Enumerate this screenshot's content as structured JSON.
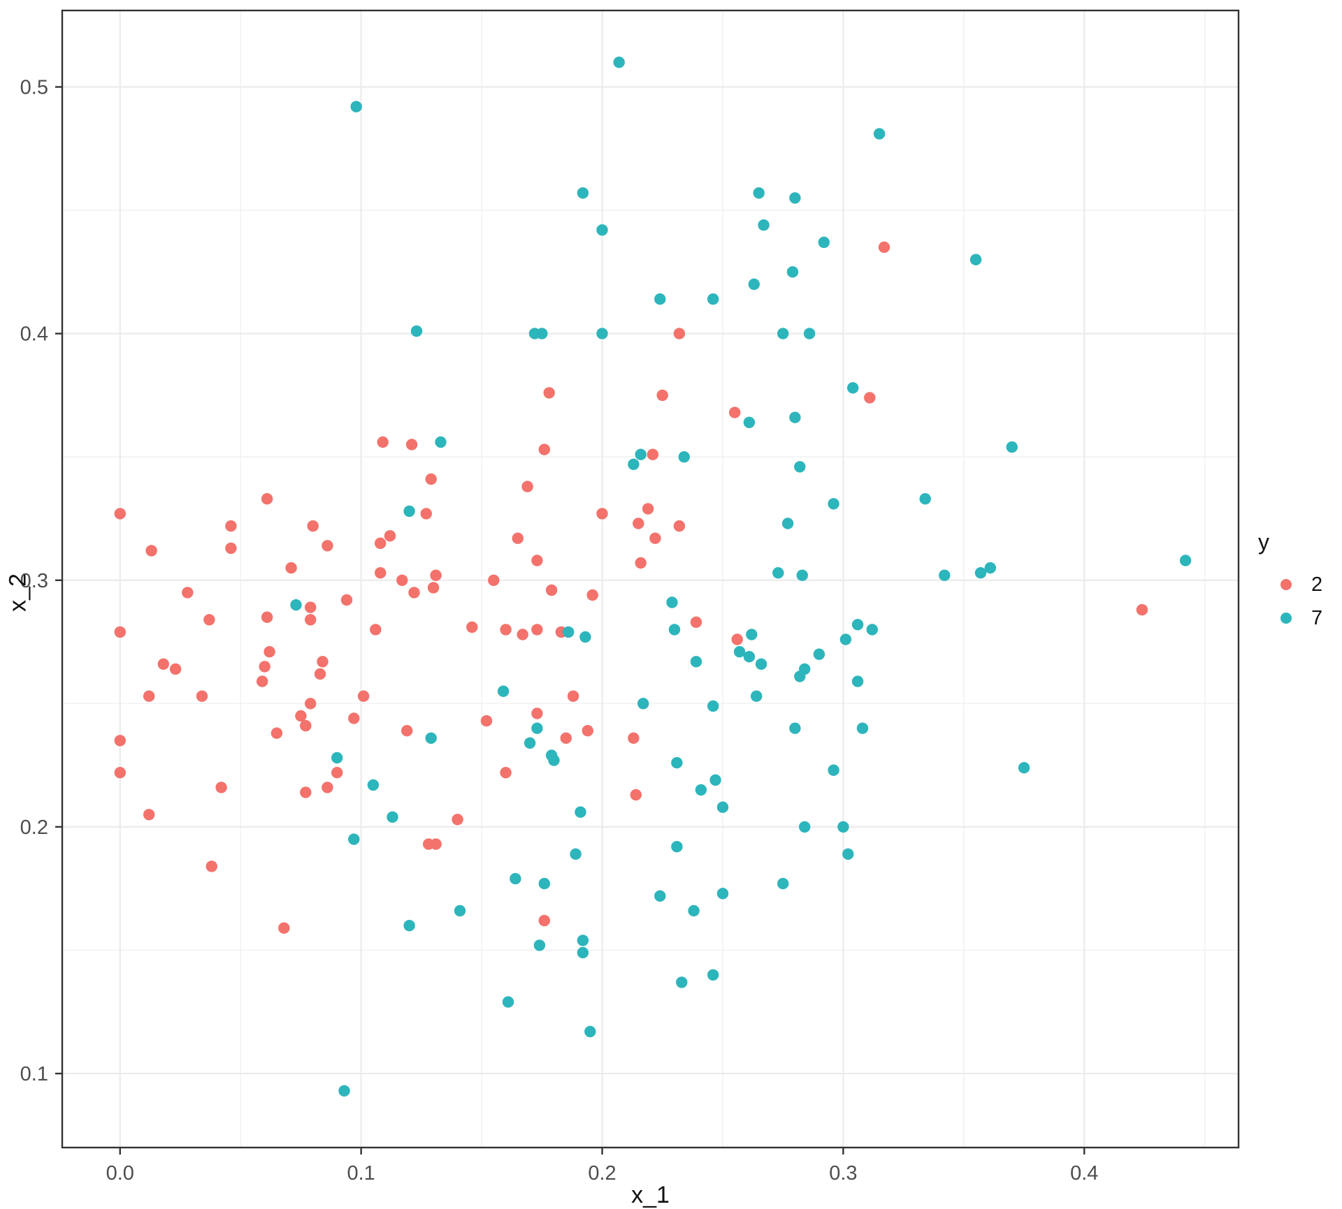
{
  "chart_data": {
    "type": "scatter",
    "title": "",
    "xlabel": "x_1",
    "ylabel": "x_2",
    "xlim": [
      -0.024,
      0.464
    ],
    "ylim": [
      0.07,
      0.531
    ],
    "x_ticks": [
      0.0,
      0.1,
      0.2,
      0.3,
      0.4
    ],
    "y_ticks": [
      0.1,
      0.2,
      0.3,
      0.4,
      0.5
    ],
    "x_minor_ticks": [
      0.05,
      0.15,
      0.25,
      0.35,
      0.45
    ],
    "y_minor_ticks": [
      0.15,
      0.25,
      0.35,
      0.45
    ],
    "grid": true,
    "panel_border_color": "#333333",
    "grid_major_color": "#ebebeb",
    "grid_minor_color": "#f2f2f2",
    "tick_label_color": "#4d4d4d",
    "point_radius": 8.2,
    "legend_position": "right",
    "legend": {
      "title": "y",
      "entries": [
        {
          "label": "2",
          "color": "#F3726C"
        },
        {
          "label": "7",
          "color": "#2DB5BC"
        }
      ]
    },
    "series": [
      {
        "name": "2",
        "color": "#F3726C",
        "points": [
          [
            0.232,
            0.4
          ],
          [
            0.178,
            0.376
          ],
          [
            0.317,
            0.435
          ],
          [
            0.311,
            0.374
          ],
          [
            0.424,
            0.288
          ],
          [
            0.109,
            0.356
          ],
          [
            0.121,
            0.355
          ],
          [
            0.129,
            0.341
          ],
          [
            0.061,
            0.333
          ],
          [
            0.0,
            0.327
          ],
          [
            0.127,
            0.327
          ],
          [
            0.046,
            0.322
          ],
          [
            0.08,
            0.322
          ],
          [
            0.112,
            0.318
          ],
          [
            0.108,
            0.315
          ],
          [
            0.013,
            0.312
          ],
          [
            0.086,
            0.314
          ],
          [
            0.046,
            0.313
          ],
          [
            0.071,
            0.305
          ],
          [
            0.108,
            0.303
          ],
          [
            0.117,
            0.3
          ],
          [
            0.131,
            0.302
          ],
          [
            0.13,
            0.297
          ],
          [
            0.122,
            0.295
          ],
          [
            0.106,
            0.28
          ],
          [
            0.028,
            0.295
          ],
          [
            0.079,
            0.289
          ],
          [
            0.061,
            0.285
          ],
          [
            0.079,
            0.284
          ],
          [
            0.094,
            0.292
          ],
          [
            0.037,
            0.284
          ],
          [
            0.0,
            0.279
          ],
          [
            0.018,
            0.266
          ],
          [
            0.023,
            0.264
          ],
          [
            0.012,
            0.253
          ],
          [
            0.034,
            0.253
          ],
          [
            0.062,
            0.271
          ],
          [
            0.06,
            0.265
          ],
          [
            0.084,
            0.267
          ],
          [
            0.083,
            0.262
          ],
          [
            0.059,
            0.259
          ],
          [
            0.101,
            0.253
          ],
          [
            0.079,
            0.25
          ],
          [
            0.075,
            0.245
          ],
          [
            0.077,
            0.241
          ],
          [
            0.065,
            0.238
          ],
          [
            0.097,
            0.244
          ],
          [
            0.119,
            0.239
          ],
          [
            0.0,
            0.235
          ],
          [
            0.0,
            0.222
          ],
          [
            0.042,
            0.216
          ],
          [
            0.012,
            0.205
          ],
          [
            0.077,
            0.214
          ],
          [
            0.086,
            0.216
          ],
          [
            0.09,
            0.222
          ],
          [
            0.038,
            0.184
          ],
          [
            0.068,
            0.159
          ],
          [
            0.128,
            0.193
          ],
          [
            0.131,
            0.193
          ],
          [
            0.225,
            0.375
          ],
          [
            0.255,
            0.368
          ],
          [
            0.176,
            0.353
          ],
          [
            0.221,
            0.351
          ],
          [
            0.169,
            0.338
          ],
          [
            0.219,
            0.329
          ],
          [
            0.2,
            0.327
          ],
          [
            0.215,
            0.323
          ],
          [
            0.232,
            0.322
          ],
          [
            0.222,
            0.317
          ],
          [
            0.165,
            0.317
          ],
          [
            0.216,
            0.307
          ],
          [
            0.173,
            0.308
          ],
          [
            0.155,
            0.3
          ],
          [
            0.179,
            0.296
          ],
          [
            0.196,
            0.294
          ],
          [
            0.239,
            0.283
          ],
          [
            0.146,
            0.281
          ],
          [
            0.16,
            0.28
          ],
          [
            0.167,
            0.278
          ],
          [
            0.173,
            0.28
          ],
          [
            0.183,
            0.279
          ],
          [
            0.256,
            0.276
          ],
          [
            0.188,
            0.253
          ],
          [
            0.173,
            0.246
          ],
          [
            0.152,
            0.243
          ],
          [
            0.194,
            0.239
          ],
          [
            0.185,
            0.236
          ],
          [
            0.213,
            0.236
          ],
          [
            0.16,
            0.222
          ],
          [
            0.14,
            0.203
          ],
          [
            0.214,
            0.213
          ],
          [
            0.176,
            0.162
          ]
        ]
      },
      {
        "name": "7",
        "color": "#2DB5BC",
        "points": [
          [
            0.098,
            0.492
          ],
          [
            0.123,
            0.401
          ],
          [
            0.207,
            0.51
          ],
          [
            0.192,
            0.457
          ],
          [
            0.265,
            0.457
          ],
          [
            0.28,
            0.455
          ],
          [
            0.2,
            0.442
          ],
          [
            0.267,
            0.444
          ],
          [
            0.292,
            0.437
          ],
          [
            0.279,
            0.425
          ],
          [
            0.263,
            0.42
          ],
          [
            0.224,
            0.414
          ],
          [
            0.246,
            0.414
          ],
          [
            0.172,
            0.4
          ],
          [
            0.175,
            0.4
          ],
          [
            0.2,
            0.4
          ],
          [
            0.275,
            0.4
          ],
          [
            0.286,
            0.4
          ],
          [
            0.315,
            0.481
          ],
          [
            0.355,
            0.43
          ],
          [
            0.304,
            0.378
          ],
          [
            0.37,
            0.354
          ],
          [
            0.334,
            0.333
          ],
          [
            0.342,
            0.302
          ],
          [
            0.357,
            0.303
          ],
          [
            0.361,
            0.305
          ],
          [
            0.442,
            0.308
          ],
          [
            0.306,
            0.282
          ],
          [
            0.312,
            0.28
          ],
          [
            0.301,
            0.276
          ],
          [
            0.306,
            0.259
          ],
          [
            0.308,
            0.24
          ],
          [
            0.375,
            0.224
          ],
          [
            0.133,
            0.356
          ],
          [
            0.12,
            0.328
          ],
          [
            0.073,
            0.29
          ],
          [
            0.129,
            0.236
          ],
          [
            0.09,
            0.228
          ],
          [
            0.105,
            0.217
          ],
          [
            0.113,
            0.204
          ],
          [
            0.097,
            0.195
          ],
          [
            0.12,
            0.16
          ],
          [
            0.093,
            0.093
          ],
          [
            0.261,
            0.364
          ],
          [
            0.28,
            0.366
          ],
          [
            0.216,
            0.351
          ],
          [
            0.234,
            0.35
          ],
          [
            0.213,
            0.347
          ],
          [
            0.282,
            0.346
          ],
          [
            0.296,
            0.331
          ],
          [
            0.277,
            0.323
          ],
          [
            0.273,
            0.303
          ],
          [
            0.283,
            0.302
          ],
          [
            0.229,
            0.291
          ],
          [
            0.23,
            0.28
          ],
          [
            0.186,
            0.279
          ],
          [
            0.193,
            0.277
          ],
          [
            0.262,
            0.278
          ],
          [
            0.257,
            0.271
          ],
          [
            0.261,
            0.269
          ],
          [
            0.266,
            0.266
          ],
          [
            0.239,
            0.267
          ],
          [
            0.29,
            0.27
          ],
          [
            0.284,
            0.264
          ],
          [
            0.282,
            0.261
          ],
          [
            0.159,
            0.255
          ],
          [
            0.217,
            0.25
          ],
          [
            0.246,
            0.249
          ],
          [
            0.264,
            0.253
          ],
          [
            0.173,
            0.24
          ],
          [
            0.17,
            0.234
          ],
          [
            0.179,
            0.229
          ],
          [
            0.18,
            0.227
          ],
          [
            0.231,
            0.226
          ],
          [
            0.28,
            0.24
          ],
          [
            0.191,
            0.206
          ],
          [
            0.241,
            0.215
          ],
          [
            0.247,
            0.219
          ],
          [
            0.25,
            0.208
          ],
          [
            0.284,
            0.2
          ],
          [
            0.3,
            0.2
          ],
          [
            0.231,
            0.192
          ],
          [
            0.302,
            0.189
          ],
          [
            0.189,
            0.189
          ],
          [
            0.164,
            0.179
          ],
          [
            0.176,
            0.177
          ],
          [
            0.224,
            0.172
          ],
          [
            0.25,
            0.173
          ],
          [
            0.238,
            0.166
          ],
          [
            0.275,
            0.177
          ],
          [
            0.141,
            0.166
          ],
          [
            0.192,
            0.154
          ],
          [
            0.174,
            0.152
          ],
          [
            0.192,
            0.149
          ],
          [
            0.246,
            0.14
          ],
          [
            0.233,
            0.137
          ],
          [
            0.161,
            0.129
          ],
          [
            0.195,
            0.117
          ],
          [
            0.296,
            0.223
          ]
        ]
      }
    ]
  }
}
